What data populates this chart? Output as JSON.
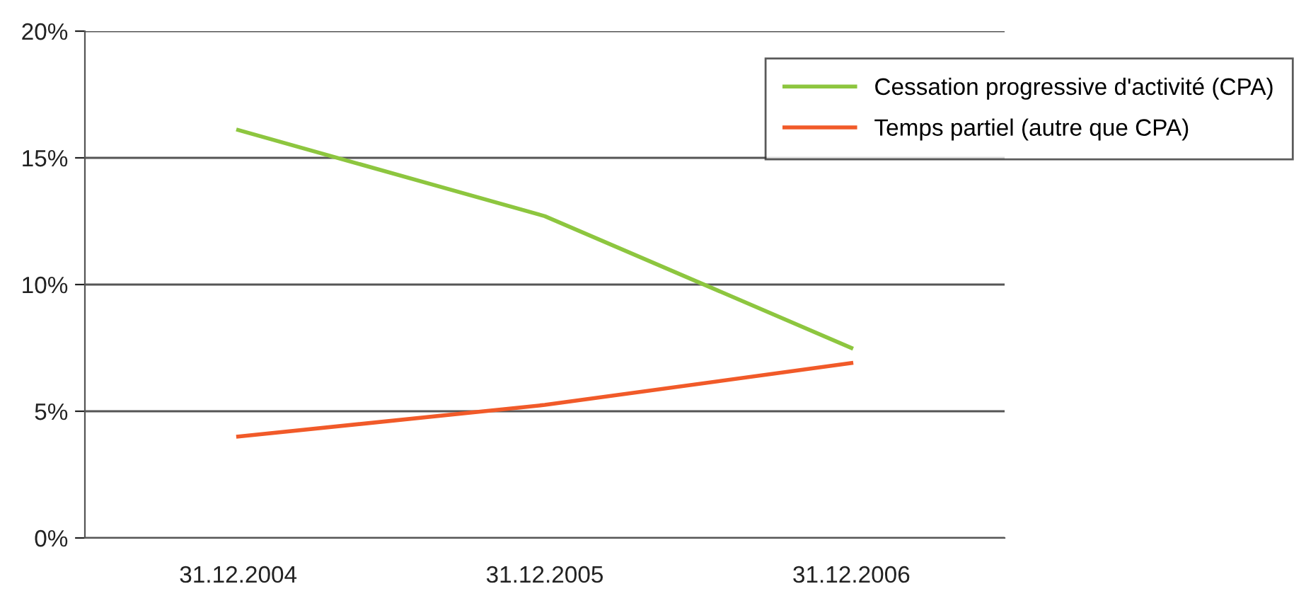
{
  "chart_data": {
    "type": "line",
    "categories": [
      "31.12.2004",
      "31.12.2005",
      "31.12.2006"
    ],
    "series": [
      {
        "name": "Cessation progressive d'activité (CPA)",
        "color": "#8dc63f",
        "values": [
          16.1,
          12.7,
          7.5
        ]
      },
      {
        "name": "Temps partiel (autre que CPA)",
        "color": "#f15a29",
        "values": [
          4.0,
          5.25,
          6.9
        ]
      }
    ],
    "ylim": [
      0,
      20
    ],
    "yticks": [
      {
        "value": 0,
        "label": "0%"
      },
      {
        "value": 5,
        "label": "5%"
      },
      {
        "value": 10,
        "label": "10%"
      },
      {
        "value": 15,
        "label": "15%"
      },
      {
        "value": 20,
        "label": "20%"
      }
    ],
    "grid": "y",
    "legend": "top right",
    "marker": "none",
    "line_style": "solid"
  }
}
